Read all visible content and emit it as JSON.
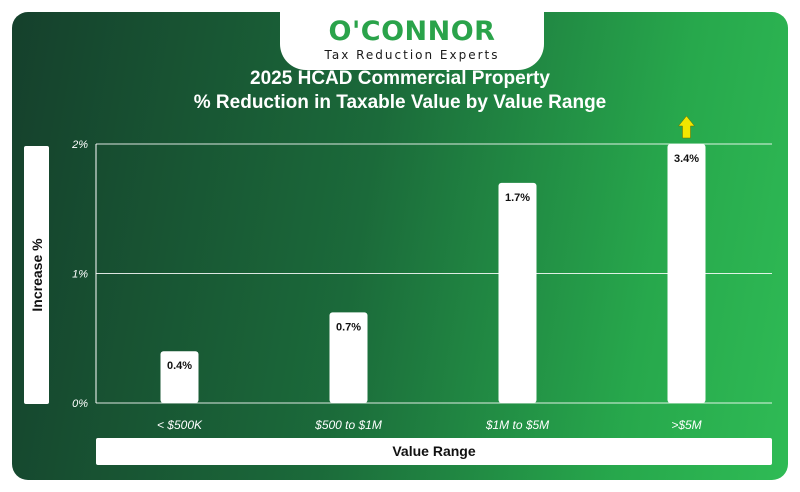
{
  "logo": {
    "brand": "O'CONNOR",
    "tagline": "Tax Reduction Experts"
  },
  "chart_data": {
    "type": "bar",
    "title": "2025 HCAD Commercial Property",
    "subtitle": "% Reduction in Taxable Value by Value Range",
    "xlabel": "Value Range",
    "ylabel": "Increase %",
    "categories": [
      "< $500K",
      "$500 to $1M",
      "$1M to $5M",
      ">$5M"
    ],
    "values": [
      0.4,
      0.7,
      1.7,
      3.4
    ],
    "data_labels": [
      "0.4%",
      "0.7%",
      "1.7%",
      "3.4%"
    ],
    "ylim": [
      0,
      2
    ],
    "yticks": [
      {
        "value": 0,
        "label": "0%"
      },
      {
        "value": 1,
        "label": "1%"
      },
      {
        "value": 2,
        "label": "2%"
      }
    ],
    "grid": true,
    "bar_color": "#ffffff",
    "overflow_marker": {
      "category": ">$5M",
      "color": "#f2e600",
      "icon": "up-arrow-icon"
    }
  }
}
